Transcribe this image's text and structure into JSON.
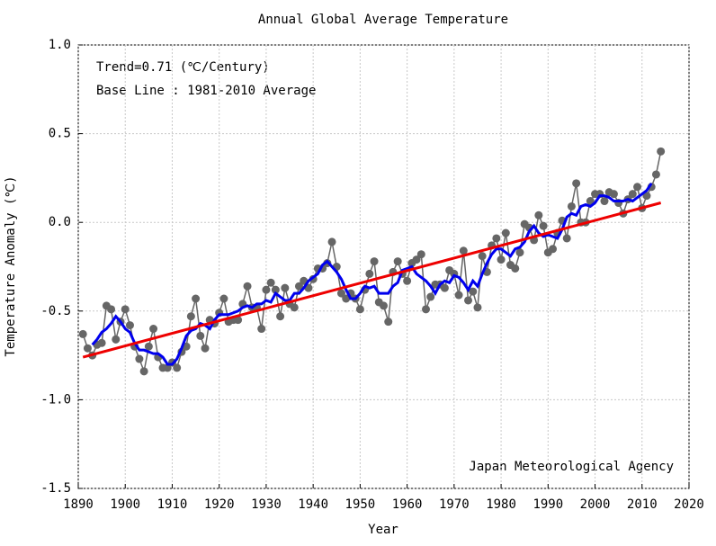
{
  "chart_data": {
    "type": "line",
    "title": "Annual Global Average Temperature",
    "xlabel": "Year",
    "ylabel": "Temperature Anomaly (℃)",
    "annotations": [
      "Trend=0.71 (℃/Century)",
      "Base Line : 1981-2010 Average",
      "Japan Meteorological Agency"
    ],
    "xlim": [
      1890,
      2020
    ],
    "ylim": [
      -1.5,
      1.0
    ],
    "xticks": [
      1890,
      1900,
      1910,
      1920,
      1930,
      1940,
      1950,
      1960,
      1970,
      1980,
      1990,
      2000,
      2010,
      2020
    ],
    "yticks": [
      {
        "value": -1.5,
        "label": "-1.5"
      },
      {
        "value": -1.0,
        "label": "-1.0"
      },
      {
        "value": -0.5,
        "label": "-0.5"
      },
      {
        "value": 0.0,
        "label": "0.0"
      },
      {
        "value": 0.5,
        "label": "0.5"
      },
      {
        "value": 1.0,
        "label": "1.0"
      }
    ],
    "grid": true,
    "x": [
      1891,
      1892,
      1893,
      1894,
      1895,
      1896,
      1897,
      1898,
      1899,
      1900,
      1901,
      1902,
      1903,
      1904,
      1905,
      1906,
      1907,
      1908,
      1909,
      1910,
      1911,
      1912,
      1913,
      1914,
      1915,
      1916,
      1917,
      1918,
      1919,
      1920,
      1921,
      1922,
      1923,
      1924,
      1925,
      1926,
      1927,
      1928,
      1929,
      1930,
      1931,
      1932,
      1933,
      1934,
      1935,
      1936,
      1937,
      1938,
      1939,
      1940,
      1941,
      1942,
      1943,
      1944,
      1945,
      1946,
      1947,
      1948,
      1949,
      1950,
      1951,
      1952,
      1953,
      1954,
      1955,
      1956,
      1957,
      1958,
      1959,
      1960,
      1961,
      1962,
      1963,
      1964,
      1965,
      1966,
      1967,
      1968,
      1969,
      1970,
      1971,
      1972,
      1973,
      1974,
      1975,
      1976,
      1977,
      1978,
      1979,
      1980,
      1981,
      1982,
      1983,
      1984,
      1985,
      1986,
      1987,
      1988,
      1989,
      1990,
      1991,
      1992,
      1993,
      1994,
      1995,
      1996,
      1997,
      1998,
      1999,
      2000,
      2001,
      2002,
      2003,
      2004,
      2005,
      2006,
      2007,
      2008,
      2009,
      2010,
      2011,
      2012,
      2013,
      2014
    ],
    "series": [
      {
        "color": "#666666",
        "markers": true,
        "values": [
          -0.63,
          -0.71,
          -0.75,
          -0.69,
          -0.68,
          -0.47,
          -0.49,
          -0.66,
          -0.56,
          -0.49,
          -0.58,
          -0.7,
          -0.77,
          -0.84,
          -0.7,
          -0.6,
          -0.76,
          -0.82,
          -0.82,
          -0.79,
          -0.82,
          -0.73,
          -0.7,
          -0.53,
          -0.43,
          -0.64,
          -0.71,
          -0.55,
          -0.57,
          -0.51,
          -0.43,
          -0.56,
          -0.55,
          -0.55,
          -0.46,
          -0.36,
          -0.48,
          -0.48,
          -0.6,
          -0.38,
          -0.34,
          -0.38,
          -0.53,
          -0.37,
          -0.46,
          -0.48,
          -0.36,
          -0.33,
          -0.37,
          -0.32,
          -0.26,
          -0.26,
          -0.23,
          -0.11,
          -0.25,
          -0.4,
          -0.43,
          -0.4,
          -0.43,
          -0.49,
          -0.38,
          -0.29,
          -0.22,
          -0.45,
          -0.47,
          -0.56,
          -0.28,
          -0.22,
          -0.29,
          -0.33,
          -0.23,
          -0.21,
          -0.18,
          -0.49,
          -0.42,
          -0.35,
          -0.35,
          -0.37,
          -0.27,
          -0.29,
          -0.41,
          -0.16,
          -0.44,
          -0.39,
          -0.48,
          -0.19,
          -0.28,
          -0.13,
          -0.09,
          -0.21,
          -0.06,
          -0.24,
          -0.26,
          -0.17,
          -0.01,
          -0.03,
          -0.1,
          0.04,
          -0.02,
          -0.17,
          -0.15,
          -0.06,
          0.01,
          -0.09,
          0.09,
          0.22,
          0.0,
          0.0,
          0.12,
          0.16,
          0.16,
          0.12,
          0.17,
          0.16,
          0.11,
          0.05,
          0.13,
          0.16,
          0.2,
          0.08,
          0.15,
          0.2,
          0.27,
          0.4
        ]
      },
      {
        "color": "#0000ee",
        "markers": false,
        "values": [
          null,
          null,
          -0.69,
          -0.66,
          -0.62,
          -0.6,
          -0.57,
          -0.53,
          -0.56,
          -0.6,
          -0.62,
          -0.68,
          -0.72,
          -0.72,
          -0.73,
          -0.74,
          -0.74,
          -0.76,
          -0.8,
          -0.8,
          -0.77,
          -0.71,
          -0.64,
          -0.61,
          -0.6,
          -0.57,
          -0.58,
          -0.6,
          -0.55,
          -0.52,
          -0.52,
          -0.52,
          -0.51,
          -0.5,
          -0.48,
          -0.47,
          -0.48,
          -0.46,
          -0.46,
          -0.44,
          -0.45,
          -0.4,
          -0.42,
          -0.44,
          -0.44,
          -0.4,
          -0.4,
          -0.37,
          -0.33,
          -0.31,
          -0.29,
          -0.24,
          -0.22,
          -0.25,
          -0.28,
          -0.32,
          -0.38,
          -0.43,
          -0.43,
          -0.4,
          -0.36,
          -0.37,
          -0.36,
          -0.4,
          -0.4,
          -0.4,
          -0.36,
          -0.34,
          -0.27,
          -0.26,
          -0.25,
          -0.29,
          -0.31,
          -0.33,
          -0.36,
          -0.4,
          -0.35,
          -0.33,
          -0.34,
          -0.3,
          -0.31,
          -0.34,
          -0.38,
          -0.33,
          -0.36,
          -0.29,
          -0.23,
          -0.18,
          -0.15,
          -0.15,
          -0.17,
          -0.19,
          -0.15,
          -0.14,
          -0.11,
          -0.05,
          -0.02,
          -0.06,
          -0.08,
          -0.07,
          -0.08,
          -0.09,
          -0.04,
          0.03,
          0.05,
          0.04,
          0.09,
          0.1,
          0.09,
          0.11,
          0.15,
          0.15,
          0.14,
          0.12,
          0.12,
          0.12,
          0.13,
          0.12,
          0.14,
          0.16,
          0.18,
          0.22,
          null,
          null
        ]
      },
      {
        "color": "#ee0000",
        "markers": false,
        "x": [
          1891,
          2014
        ],
        "values": [
          -0.76,
          0.11
        ]
      }
    ]
  }
}
